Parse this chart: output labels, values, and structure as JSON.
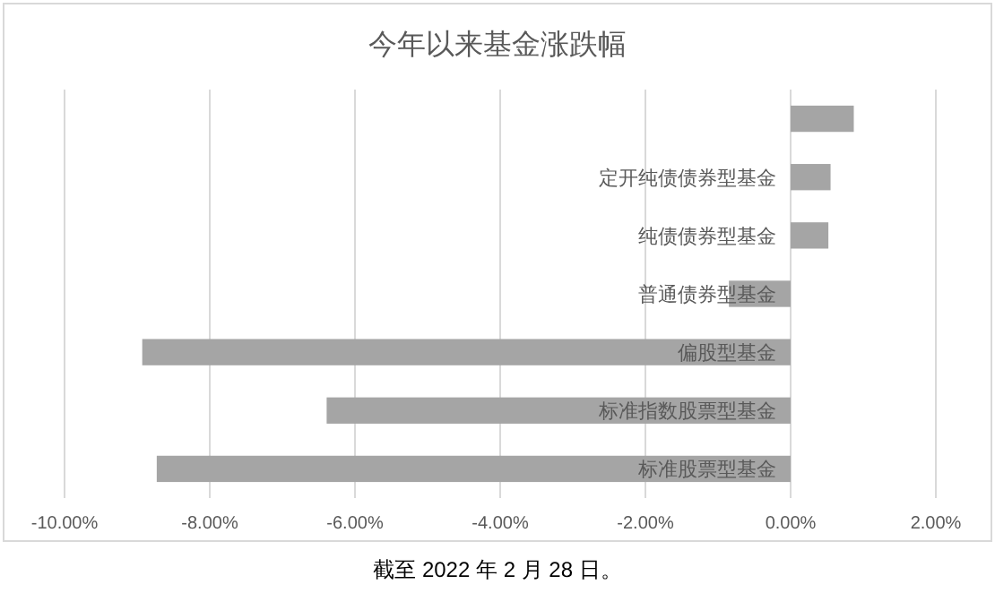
{
  "chart_data": {
    "type": "bar",
    "orientation": "horizontal",
    "title": "今年以来基金涨跌幅",
    "categories": [
      null,
      "定开纯债债券型基金",
      "纯债债券型基金",
      "普通债券型基金",
      "偏股型基金",
      "标准指数股票型基金",
      "标准股票型基金"
    ],
    "values": [
      0.87,
      0.55,
      0.52,
      -0.85,
      -8.93,
      -6.39,
      -8.73
    ],
    "color": "#a5a5a5",
    "xlim": [
      -10,
      2
    ],
    "xticks": [
      {
        "value": -10,
        "label": "-10.00%"
      },
      {
        "value": -8,
        "label": "-8.00%"
      },
      {
        "value": -6,
        "label": "-6.00%"
      },
      {
        "value": -4,
        "label": "-4.00%"
      },
      {
        "value": -2,
        "label": "-2.00%"
      },
      {
        "value": 0,
        "label": "0.00%"
      },
      {
        "value": 2,
        "label": "2.00%"
      }
    ],
    "grid": "x",
    "annotations": [
      "截至 2022 年 2 月 28 日。"
    ]
  }
}
